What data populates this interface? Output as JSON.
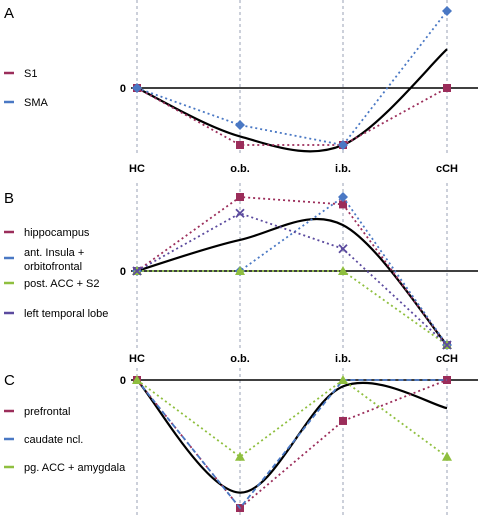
{
  "chart_data": [
    {
      "type": "line",
      "panel_label": "A",
      "categories": [
        "HC",
        "o.b.",
        "i.b.",
        "cCH"
      ],
      "zero_label": "0",
      "ylim": [
        -1.1,
        1.4
      ],
      "legend_position": "left",
      "series": [
        {
          "name": "S1",
          "color": "#9b2d5a",
          "marker": "square",
          "values": [
            0,
            -1,
            -1,
            0
          ]
        },
        {
          "name": "SMA",
          "color": "#4a78c4",
          "marker": "diamond",
          "values": [
            0,
            -0.65,
            -1,
            1.35
          ]
        }
      ],
      "trend": {
        "color": "#000000",
        "values": [
          0,
          -0.85,
          -1,
          0.68
        ]
      }
    },
    {
      "type": "line",
      "panel_label": "B",
      "categories": [
        "HC",
        "o.b.",
        "i.b.",
        "cCH"
      ],
      "zero_label": "0",
      "ylim": [
        -1.0,
        1.2
      ],
      "legend_position": "left",
      "series": [
        {
          "name": "hippocampus",
          "color": "#9b2d5a",
          "marker": "square",
          "values": [
            0,
            1.0,
            0.9,
            -1
          ]
        },
        {
          "name": "ant. Insula + orbitofrontal",
          "color": "#4a78c4",
          "marker": "diamond",
          "values": [
            0,
            0,
            1.0,
            -1
          ]
        },
        {
          "name": "post. ACC + S2",
          "color": "#8fbf3f",
          "marker": "triangle",
          "values": [
            0,
            0,
            0,
            -1
          ]
        },
        {
          "name": "left temporal lobe",
          "color": "#5b4a9e",
          "marker": "x",
          "values": [
            0,
            0.78,
            0.3,
            -1
          ]
        }
      ],
      "trend": {
        "color": "#000000",
        "values": [
          0,
          0.42,
          0.62,
          -1
        ]
      }
    },
    {
      "type": "line",
      "panel_label": "C",
      "categories": [
        "HC",
        "o.b.",
        "i.b.",
        "cCH"
      ],
      "zero_label": "0",
      "ylim": [
        -1.1,
        0.05
      ],
      "legend_position": "left",
      "series": [
        {
          "name": "prefrontal",
          "color": "#9b2d5a",
          "marker": "square",
          "values": [
            0,
            -1,
            -0.32,
            0
          ]
        },
        {
          "name": "caudate ncl.",
          "color": "#4a78c4",
          "marker": "none",
          "values": [
            0,
            -1,
            0,
            0
          ]
        },
        {
          "name": "pg. ACC + amygdala",
          "color": "#8fbf3f",
          "marker": "triangle",
          "values": [
            0,
            -0.6,
            0,
            -0.6
          ]
        }
      ],
      "trend": {
        "color": "#000000",
        "values": [
          0,
          -0.88,
          -0.05,
          -0.22
        ]
      }
    }
  ]
}
